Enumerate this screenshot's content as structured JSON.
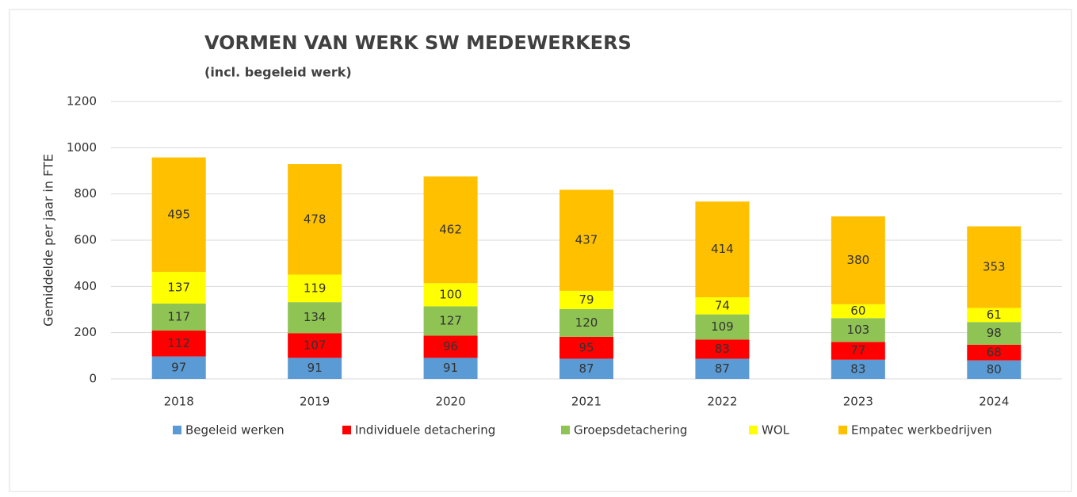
{
  "chart_data": {
    "type": "stacked_bar",
    "title": "VORMEN VAN WERK SW MEDEWERKERS",
    "subtitle": "(incl. begeleid werk)",
    "y_label": "Gemiddelde per jaar in FTE",
    "categories": [
      "2018",
      "2019",
      "2020",
      "2021",
      "2022",
      "2023",
      "2024"
    ],
    "series": [
      {
        "name": "Begeleid werken",
        "color": "#5b9bd5",
        "values": [
          97,
          91,
          91,
          87,
          87,
          83,
          80
        ]
      },
      {
        "name": "Individuele detachering",
        "color": "#ff0000",
        "values": [
          112,
          107,
          96,
          95,
          83,
          77,
          68
        ]
      },
      {
        "name": "Groepsdetachering",
        "color": "#8fc454",
        "values": [
          117,
          134,
          127,
          120,
          109,
          103,
          98
        ]
      },
      {
        "name": "WOL",
        "color": "#ffff00",
        "values": [
          137,
          119,
          100,
          79,
          74,
          60,
          61
        ]
      },
      {
        "name": "Empatec werkbedrijven",
        "color": "#ffc000",
        "values": [
          495,
          478,
          462,
          437,
          414,
          380,
          353
        ]
      }
    ],
    "ylim": [
      0,
      1200
    ],
    "yticks": [
      0,
      200,
      400,
      600,
      800,
      1000,
      1200
    ],
    "grid": true,
    "legend": "bottom"
  }
}
